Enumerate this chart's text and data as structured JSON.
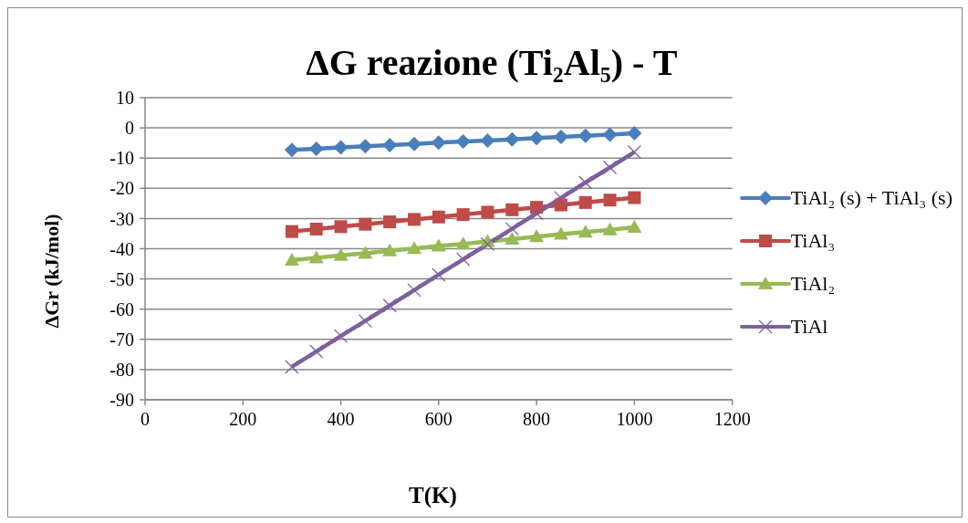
{
  "chart_data": {
    "type": "line",
    "title": "ΔG reazione (Ti₂Al₅) - T",
    "xlabel": "T(K)",
    "ylabel": "ΔGr (kJ/mol)",
    "x": [
      300,
      350,
      400,
      450,
      500,
      550,
      600,
      650,
      700,
      750,
      800,
      850,
      900,
      950,
      1000
    ],
    "series": [
      {
        "name": "TiAl₂ (s) + TiAl₃ (s)",
        "color": "#4a7ebb",
        "marker": "diamond",
        "values": [
          -7.3,
          -6.9,
          -6.5,
          -6.1,
          -5.7,
          -5.3,
          -4.9,
          -4.5,
          -4.2,
          -3.8,
          -3.4,
          -3.0,
          -2.6,
          -2.2,
          -1.8
        ]
      },
      {
        "name": "TiAl₃",
        "color": "#be4b48",
        "marker": "square",
        "values": [
          -34.3,
          -33.5,
          -32.7,
          -31.9,
          -31.1,
          -30.3,
          -29.5,
          -28.7,
          -27.9,
          -27.1,
          -26.3,
          -25.5,
          -24.7,
          -23.9,
          -23.1
        ]
      },
      {
        "name": "TiAl₂",
        "color": "#98b954",
        "marker": "triangle",
        "values": [
          -43.8,
          -43.0,
          -42.2,
          -41.5,
          -40.7,
          -39.9,
          -39.1,
          -38.4,
          -37.6,
          -36.8,
          -36.0,
          -35.2,
          -34.5,
          -33.7,
          -32.9
        ]
      },
      {
        "name": "TiAl",
        "color": "#7d60a0",
        "marker": "cross",
        "values": [
          -79.1,
          -74.0,
          -68.9,
          -63.9,
          -58.8,
          -53.7,
          -48.6,
          -43.5,
          -38.5,
          -33.4,
          -28.3,
          -23.2,
          -18.1,
          -13.1,
          -8.0
        ]
      }
    ],
    "xlim": [
      0,
      1200
    ],
    "xticks": [
      0,
      200,
      400,
      600,
      800,
      1000,
      1200
    ],
    "ylim": [
      -90,
      10
    ],
    "yticks": [
      10,
      0,
      -10,
      -20,
      -30,
      -40,
      -50,
      -60,
      -70,
      -80,
      -90
    ],
    "grid": "y",
    "legend": "right",
    "line_style": "solid"
  }
}
